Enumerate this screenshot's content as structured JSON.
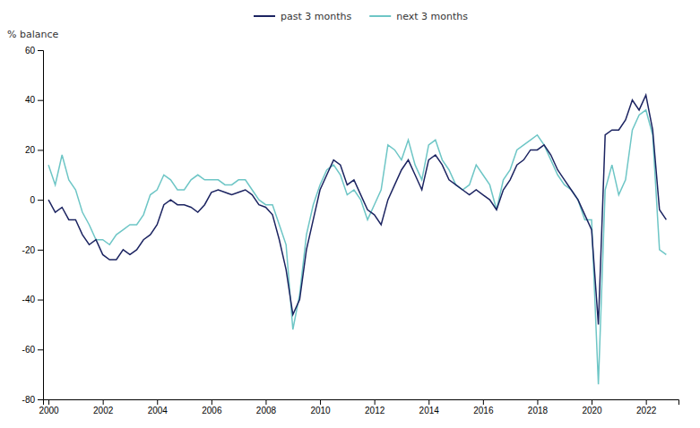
{
  "chart_data": {
    "type": "line",
    "ylabel": "% balance",
    "ylim": [
      -80,
      60
    ],
    "yticks": [
      -80,
      -60,
      -40,
      -20,
      0,
      20,
      40,
      60
    ],
    "xlim": [
      1999.8,
      2023.2
    ],
    "xticks": [
      2000,
      2002,
      2004,
      2006,
      2008,
      2010,
      2012,
      2014,
      2016,
      2018,
      2020,
      2022
    ],
    "grid": false,
    "legend": "top",
    "x": [
      2000.0,
      2000.25,
      2000.5,
      2000.75,
      2001.0,
      2001.25,
      2001.5,
      2001.75,
      2002.0,
      2002.25,
      2002.5,
      2002.75,
      2003.0,
      2003.25,
      2003.5,
      2003.75,
      2004.0,
      2004.25,
      2004.5,
      2004.75,
      2005.0,
      2005.25,
      2005.5,
      2005.75,
      2006.0,
      2006.25,
      2006.5,
      2006.75,
      2007.0,
      2007.25,
      2007.5,
      2007.75,
      2008.0,
      2008.25,
      2008.5,
      2008.75,
      2009.0,
      2009.25,
      2009.5,
      2009.75,
      2010.0,
      2010.25,
      2010.5,
      2010.75,
      2011.0,
      2011.25,
      2011.5,
      2011.75,
      2012.0,
      2012.25,
      2012.5,
      2012.75,
      2013.0,
      2013.25,
      2013.5,
      2013.75,
      2014.0,
      2014.25,
      2014.5,
      2014.75,
      2015.0,
      2015.25,
      2015.5,
      2015.75,
      2016.0,
      2016.25,
      2016.5,
      2016.75,
      2017.0,
      2017.25,
      2017.5,
      2017.75,
      2018.0,
      2018.25,
      2018.5,
      2018.75,
      2019.0,
      2019.25,
      2019.5,
      2019.75,
      2020.0,
      2020.25,
      2020.5,
      2020.75,
      2021.0,
      2021.25,
      2021.5,
      2021.75,
      2022.0,
      2022.25,
      2022.5,
      2022.75
    ],
    "series": [
      {
        "name": "past 3 months",
        "color": "#1c2461",
        "values": [
          0,
          -5,
          -3,
          -8,
          -8,
          -14,
          -18,
          -16,
          -22,
          -24,
          -24,
          -20,
          -22,
          -20,
          -16,
          -14,
          -10,
          -2,
          0,
          -2,
          -2,
          -3,
          -5,
          -2,
          3,
          4,
          3,
          2,
          3,
          4,
          2,
          -2,
          -3,
          -6,
          -16,
          -28,
          -46,
          -40,
          -20,
          -8,
          4,
          10,
          16,
          14,
          6,
          8,
          2,
          -4,
          -6,
          -10,
          0,
          6,
          12,
          16,
          10,
          4,
          16,
          18,
          14,
          8,
          6,
          4,
          2,
          4,
          2,
          0,
          -4,
          4,
          8,
          14,
          16,
          20,
          20,
          22,
          18,
          12,
          8,
          4,
          0,
          -6,
          -12,
          -50,
          26,
          28,
          28,
          32,
          40,
          36,
          42,
          28,
          -4,
          -8
        ]
      },
      {
        "name": "next 3 months",
        "color": "#6ec6c6",
        "values": [
          14,
          6,
          18,
          8,
          4,
          -5,
          -10,
          -16,
          -16,
          -18,
          -14,
          -12,
          -10,
          -10,
          -6,
          2,
          4,
          10,
          8,
          4,
          4,
          8,
          10,
          8,
          8,
          8,
          6,
          6,
          8,
          8,
          4,
          0,
          -2,
          -2,
          -10,
          -18,
          -52,
          -38,
          -14,
          -2,
          6,
          12,
          14,
          10,
          2,
          4,
          0,
          -8,
          -2,
          4,
          22,
          20,
          16,
          24,
          14,
          8,
          22,
          24,
          16,
          12,
          6,
          4,
          6,
          14,
          10,
          6,
          -4,
          8,
          12,
          20,
          22,
          24,
          26,
          22,
          16,
          10,
          6,
          4,
          0,
          -8,
          -8,
          -74,
          4,
          14,
          2,
          8,
          28,
          34,
          36,
          26,
          -20,
          -22
        ]
      }
    ]
  }
}
